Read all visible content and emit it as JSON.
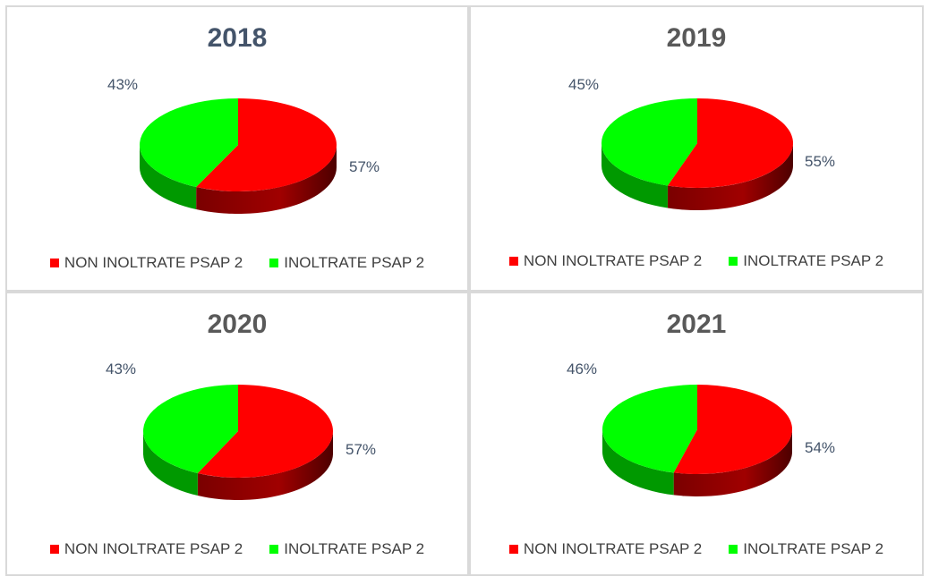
{
  "colors": {
    "non_inoltrate": "#ff0000",
    "non_inoltrate_side": "#8b0000",
    "inoltrate": "#00ff00",
    "inoltrate_side": "#009900",
    "title_2018": "#44546a",
    "title_other": "#595959",
    "label_text": "#44546a"
  },
  "chart_data": [
    {
      "type": "pie",
      "title": "2018",
      "categories": [
        "NON INOLTRATE PSAP 2",
        "INOLTRATE PSAP 2"
      ],
      "values": [
        57,
        43
      ],
      "data_labels": [
        "57%",
        "43%"
      ],
      "legend_position": "bottom"
    },
    {
      "type": "pie",
      "title": "2019",
      "categories": [
        "NON INOLTRATE PSAP 2",
        "INOLTRATE PSAP 2"
      ],
      "values": [
        55,
        45
      ],
      "data_labels": [
        "55%",
        "45%"
      ],
      "legend_position": "bottom"
    },
    {
      "type": "pie",
      "title": "2020",
      "categories": [
        "NON INOLTRATE PSAP 2",
        "INOLTRATE PSAP 2"
      ],
      "values": [
        57,
        43
      ],
      "data_labels": [
        "57%",
        "43%"
      ],
      "legend_position": "bottom"
    },
    {
      "type": "pie",
      "title": "2021",
      "categories": [
        "NON INOLTRATE PSAP 2",
        "INOLTRATE PSAP 2"
      ],
      "values": [
        54,
        46
      ],
      "data_labels": [
        "54%",
        "46%"
      ],
      "legend_position": "bottom"
    }
  ]
}
